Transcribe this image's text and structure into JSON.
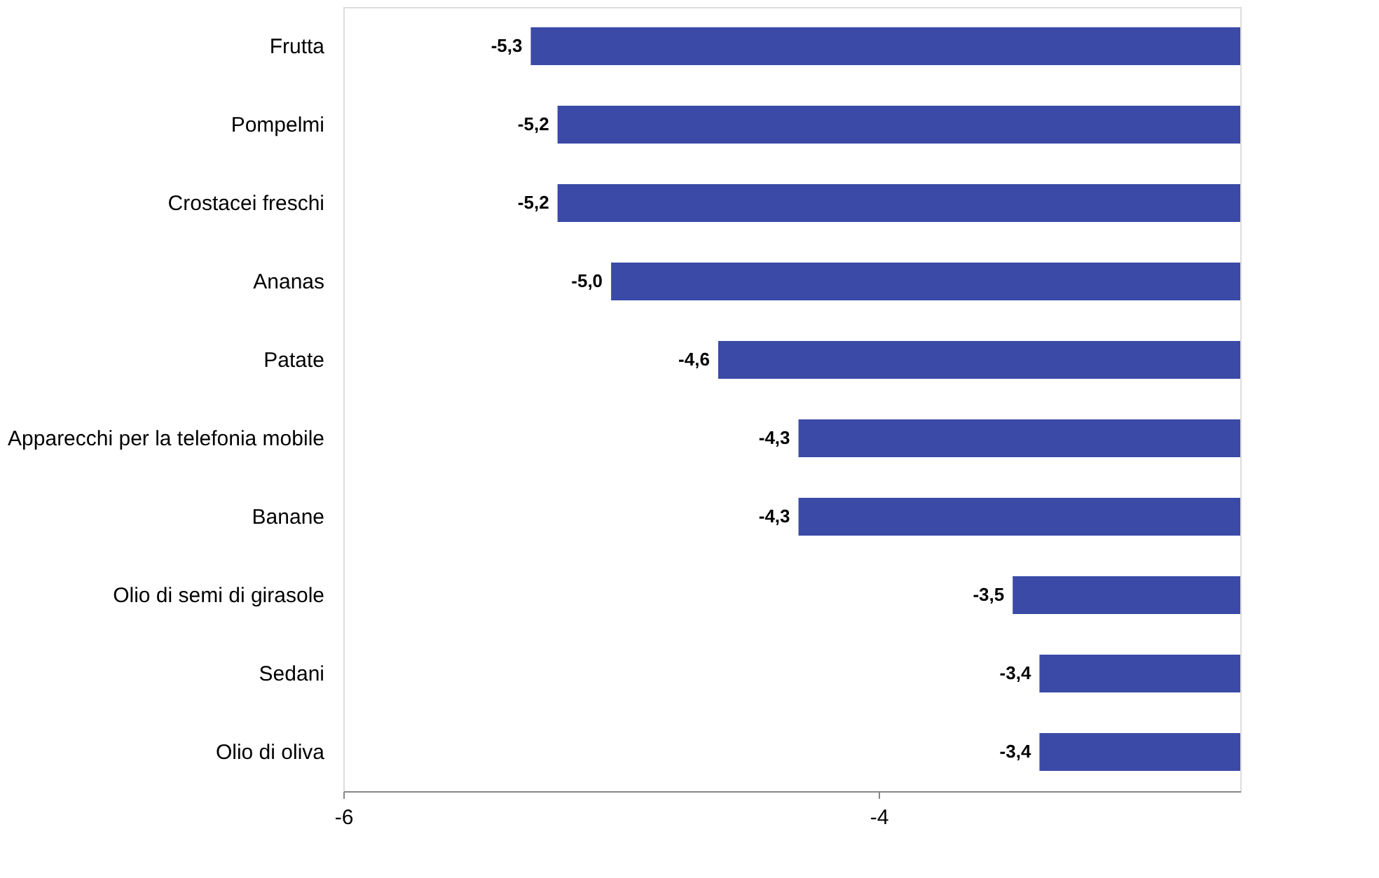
{
  "chart_data": {
    "type": "bar",
    "orientation": "horizontal",
    "categories": [
      "Frutta",
      "Pompelmi",
      "Crostacei freschi",
      "Ananas",
      "Patate",
      "Apparecchi per la telefonia mobile",
      "Banane",
      "Olio di semi di girasole",
      "Sedani",
      "Olio di oliva"
    ],
    "values": [
      -5.3,
      -5.2,
      -5.2,
      -5.0,
      -4.6,
      -4.3,
      -4.3,
      -3.5,
      -3.4,
      -3.4
    ],
    "value_labels": [
      "-5,3",
      "-5,2",
      "-5,2",
      "-5,0",
      "-4,6",
      "-4,3",
      "-4,3",
      "-3,5",
      "-3,4",
      "-3,4"
    ],
    "color": "#3a4aa6",
    "xlim": [
      -6,
      -2.65
    ],
    "xticks": [
      {
        "value": -6,
        "label": "-6"
      },
      {
        "value": -4,
        "label": "-4"
      }
    ],
    "grid": false
  }
}
